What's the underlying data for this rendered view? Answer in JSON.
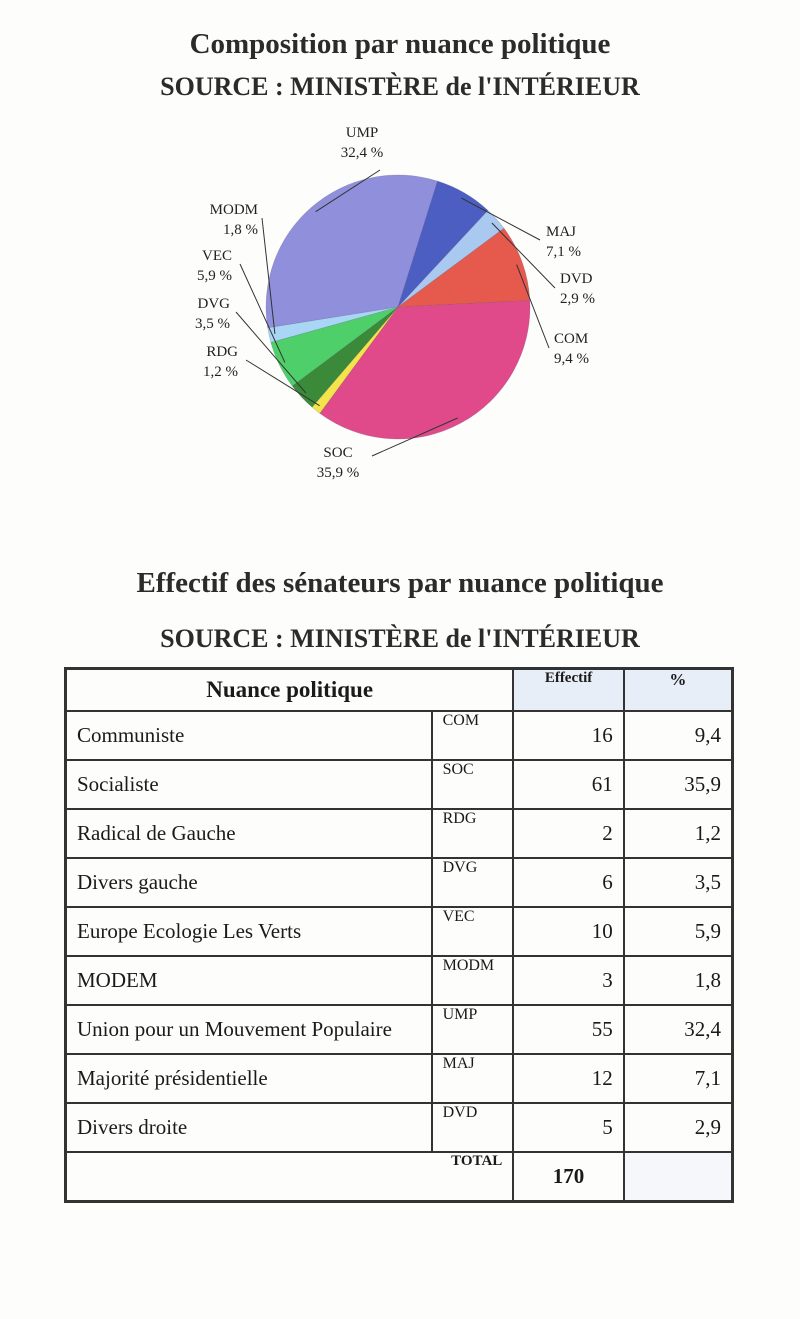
{
  "page": {
    "title": "Composition par nuance politique",
    "source": "SOURCE : MINISTÈRE de l'INTÉRIEUR"
  },
  "chart_data": {
    "type": "pie",
    "slices": [
      {
        "label": "UMP",
        "value": 32.4,
        "pct_text": "32,4 %",
        "color": "#8f8fdc"
      },
      {
        "label": "MAJ",
        "value": 7.1,
        "pct_text": "7,1 %",
        "color": "#4d5ec2"
      },
      {
        "label": "DVD",
        "value": 2.9,
        "pct_text": "2,9 %",
        "color": "#a9c9f0"
      },
      {
        "label": "COM",
        "value": 9.4,
        "pct_text": "9,4 %",
        "color": "#e65a4e"
      },
      {
        "label": "SOC",
        "value": 35.9,
        "pct_text": "35,9 %",
        "color": "#e04a8a"
      },
      {
        "label": "RDG",
        "value": 1.2,
        "pct_text": "1,2 %",
        "color": "#f2e44a"
      },
      {
        "label": "DVG",
        "value": 3.5,
        "pct_text": "3,5 %",
        "color": "#3b8a3a"
      },
      {
        "label": "VEC",
        "value": 5.9,
        "pct_text": "5,9 %",
        "color": "#4fcf6a"
      },
      {
        "label": "MODM",
        "value": 1.8,
        "pct_text": "1,8 %",
        "color": "#a9d6f5"
      }
    ]
  },
  "table": {
    "title": "Effectif des sénateurs par nuance politique",
    "source": "SOURCE : MINISTÈRE de l'INTÉRIEUR",
    "headers": {
      "nuance": "Nuance politique",
      "effectif": "Effectif",
      "pct": "%"
    },
    "rows": [
      {
        "name": "Communiste",
        "code": "COM",
        "effectif": "16",
        "pct": "9,4"
      },
      {
        "name": "Socialiste",
        "code": "SOC",
        "effectif": "61",
        "pct": "35,9"
      },
      {
        "name": "Radical de Gauche",
        "code": "RDG",
        "effectif": "2",
        "pct": "1,2"
      },
      {
        "name": "Divers gauche",
        "code": "DVG",
        "effectif": "6",
        "pct": "3,5"
      },
      {
        "name": "Europe Ecologie Les Verts",
        "code": "VEC",
        "effectif": "10",
        "pct": "5,9"
      },
      {
        "name": "MODEM",
        "code": "MODM",
        "effectif": "3",
        "pct": "1,8"
      },
      {
        "name": "Union pour un Mouvement Populaire",
        "code": "UMP",
        "effectif": "55",
        "pct": "32,4"
      },
      {
        "name": "Majorité présidentielle",
        "code": "MAJ",
        "effectif": "12",
        "pct": "7,1"
      },
      {
        "name": "Divers droite",
        "code": "DVD",
        "effectif": "5",
        "pct": "2,9"
      }
    ],
    "total_label": "TOTAL",
    "total_value": "170"
  }
}
